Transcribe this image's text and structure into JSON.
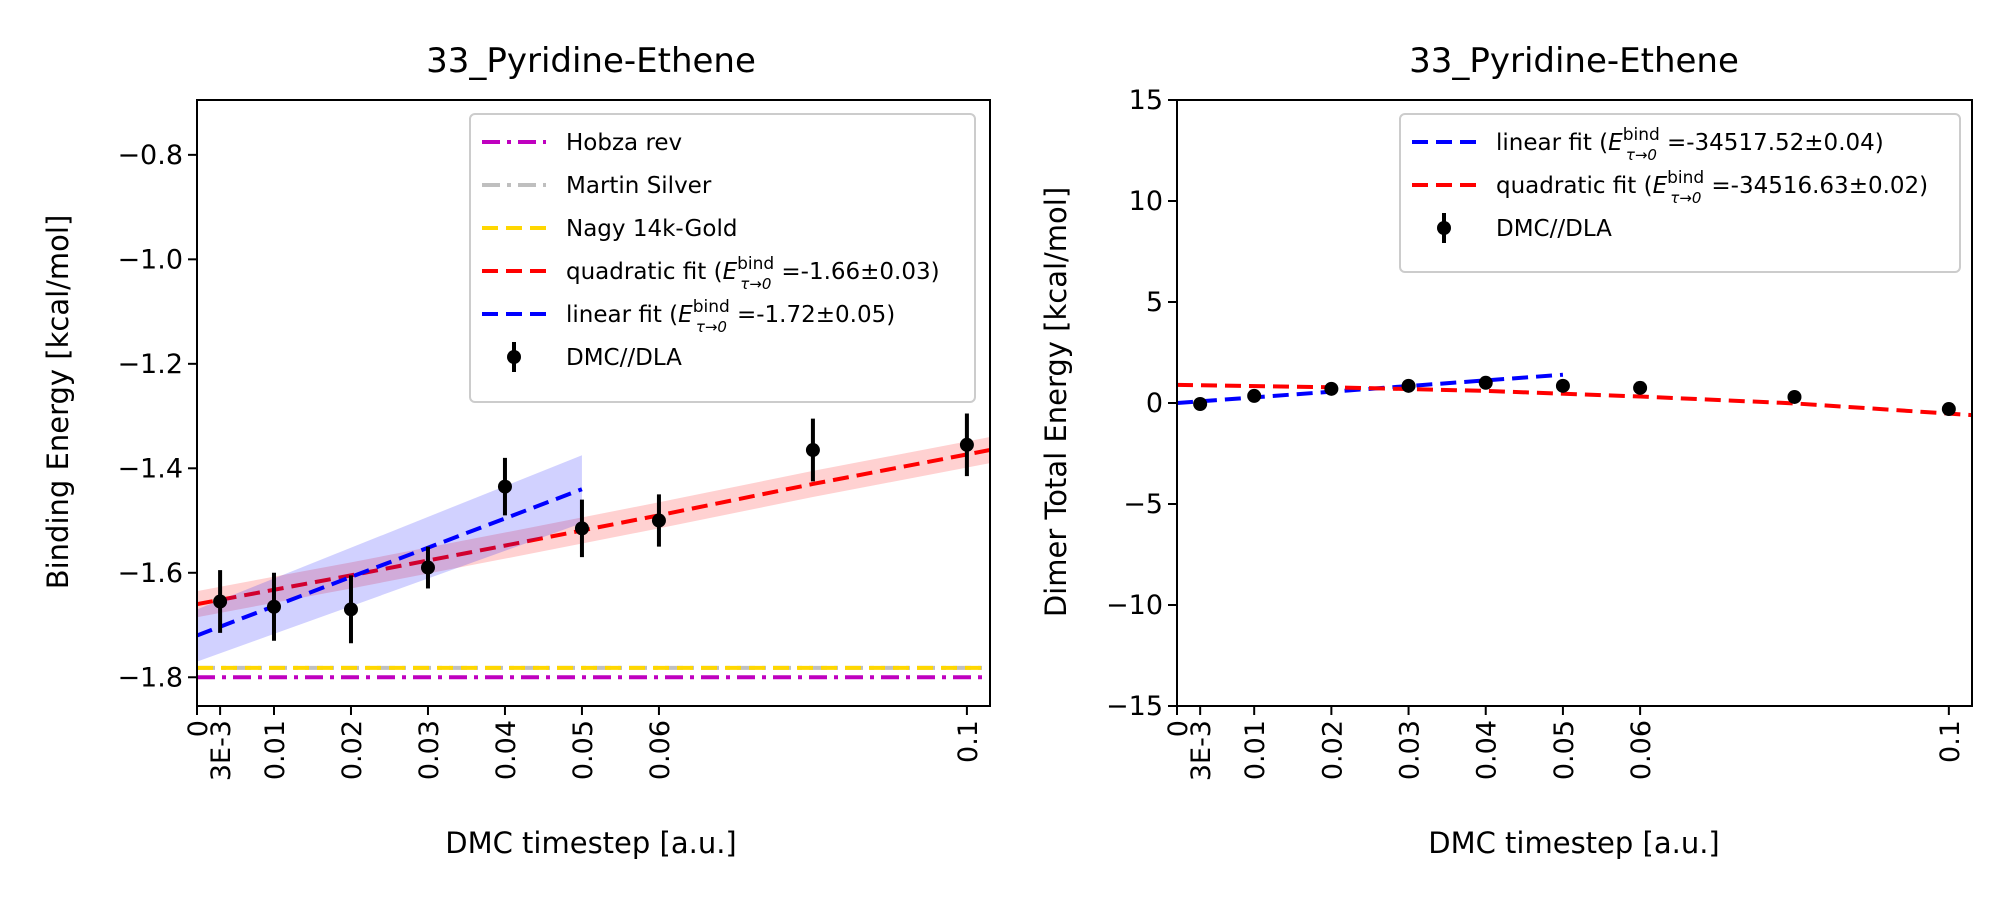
{
  "chart_data": [
    {
      "type": "line",
      "title": "33_Pyridine-Ethene",
      "xlabel": "DMC timestep [a.u.]",
      "ylabel": "Binding Energy [kcal/mol]",
      "xlim": [
        0,
        0.103
      ],
      "ylim": [
        -1.855,
        -1.695
      ],
      "x_ticks": [
        0,
        0.003,
        0.01,
        0.02,
        0.03,
        0.04,
        0.05,
        0.06,
        0.1
      ],
      "x_tick_labels": [
        "0",
        "3E-3",
        "0.01",
        "0.02",
        "0.03",
        "0.04",
        "0.05",
        "0.06",
        "0.1"
      ],
      "y_ticks": [
        -0.8,
        -1.0,
        -1.2,
        -1.4,
        -1.6,
        -1.8
      ],
      "y_tick_labels": [
        "−0.8",
        "−1.0",
        "−1.2",
        "−1.4",
        "−1.6",
        "−1.8"
      ],
      "legend_position": "top-right",
      "reference_lines": [
        {
          "name": "Hobza rev",
          "y": -1.8,
          "color": "#bf00bf",
          "style": "dashdot"
        },
        {
          "name": "Martin Silver",
          "y": -1.782,
          "color": "#bfbfbf",
          "style": "dashdot"
        },
        {
          "name": "Nagy 14k-Gold",
          "y": -1.782,
          "color": "#ffd700",
          "style": "dashed"
        }
      ],
      "fits": [
        {
          "name": "quadratic fit",
          "E_label": "E",
          "E_sup": "bind",
          "E_sub": "τ→0",
          "value": "=-1.66±0.03",
          "color": "#ff0000",
          "style": "dashed",
          "x": [
            0,
            0.02,
            0.04,
            0.06,
            0.08,
            0.103
          ],
          "y": [
            -1.66,
            -1.605,
            -1.548,
            -1.49,
            -1.43,
            -1.365
          ],
          "band": 0.025
        },
        {
          "name": "linear fit",
          "E_label": "E",
          "E_sup": "bind",
          "E_sub": "τ→0",
          "value": "=-1.72±0.05",
          "color": "#0000ff",
          "style": "dashed",
          "x": [
            0,
            0.05
          ],
          "y": [
            -1.72,
            -1.44
          ],
          "band_start": 0.05,
          "band_end": 0.065
        }
      ],
      "series": [
        {
          "name": "DMC//DLA",
          "color": "#000000",
          "x": [
            0.003,
            0.01,
            0.02,
            0.03,
            0.04,
            0.05,
            0.06,
            0.08,
            0.1
          ],
          "y": [
            -1.655,
            -1.665,
            -1.67,
            -1.59,
            -1.435,
            -1.515,
            -1.5,
            -1.365,
            -1.355
          ],
          "err": [
            0.06,
            0.065,
            0.065,
            0.04,
            0.055,
            0.055,
            0.05,
            0.06,
            0.06
          ]
        }
      ]
    },
    {
      "type": "line",
      "title": "33_Pyridine-Ethene",
      "xlabel": "DMC timestep [a.u.]",
      "ylabel": "Dimer Total Energy [kcal/mol]",
      "xlim": [
        0,
        0.103
      ],
      "ylim": [
        -15,
        15
      ],
      "x_ticks": [
        0,
        0.003,
        0.01,
        0.02,
        0.03,
        0.04,
        0.05,
        0.06,
        0.1
      ],
      "x_tick_labels": [
        "0",
        "3E-3",
        "0.01",
        "0.02",
        "0.03",
        "0.04",
        "0.05",
        "0.06",
        "0.1"
      ],
      "y_ticks": [
        15,
        10,
        5,
        0,
        -5,
        -10,
        -15
      ],
      "y_tick_labels": [
        "15",
        "10",
        "5",
        "0",
        "−5",
        "−10",
        "−15"
      ],
      "legend_position": "top-right",
      "fits": [
        {
          "name": "linear fit",
          "E_label": "E",
          "E_sup": "bind",
          "E_sub": "τ→0",
          "value": "=-34517.52±0.04",
          "color": "#0000ff",
          "style": "dashed",
          "x": [
            0,
            0.05
          ],
          "y": [
            0.0,
            1.4
          ]
        },
        {
          "name": "quadratic fit",
          "E_label": "E",
          "E_sup": "bind",
          "E_sub": "τ→0",
          "value": "=-34516.63±0.02",
          "color": "#ff0000",
          "style": "dashed",
          "x": [
            0,
            0.02,
            0.04,
            0.06,
            0.08,
            0.103
          ],
          "y": [
            0.9,
            0.78,
            0.6,
            0.32,
            -0.02,
            -0.6
          ]
        }
      ],
      "series": [
        {
          "name": "DMC//DLA",
          "color": "#000000",
          "x": [
            0.003,
            0.01,
            0.02,
            0.03,
            0.04,
            0.05,
            0.06,
            0.08,
            0.1
          ],
          "y": [
            -0.05,
            0.35,
            0.7,
            0.85,
            1.0,
            0.85,
            0.75,
            0.3,
            -0.3
          ],
          "err": [
            0.05,
            0.05,
            0.05,
            0.05,
            0.05,
            0.05,
            0.05,
            0.05,
            0.05
          ]
        }
      ]
    }
  ]
}
